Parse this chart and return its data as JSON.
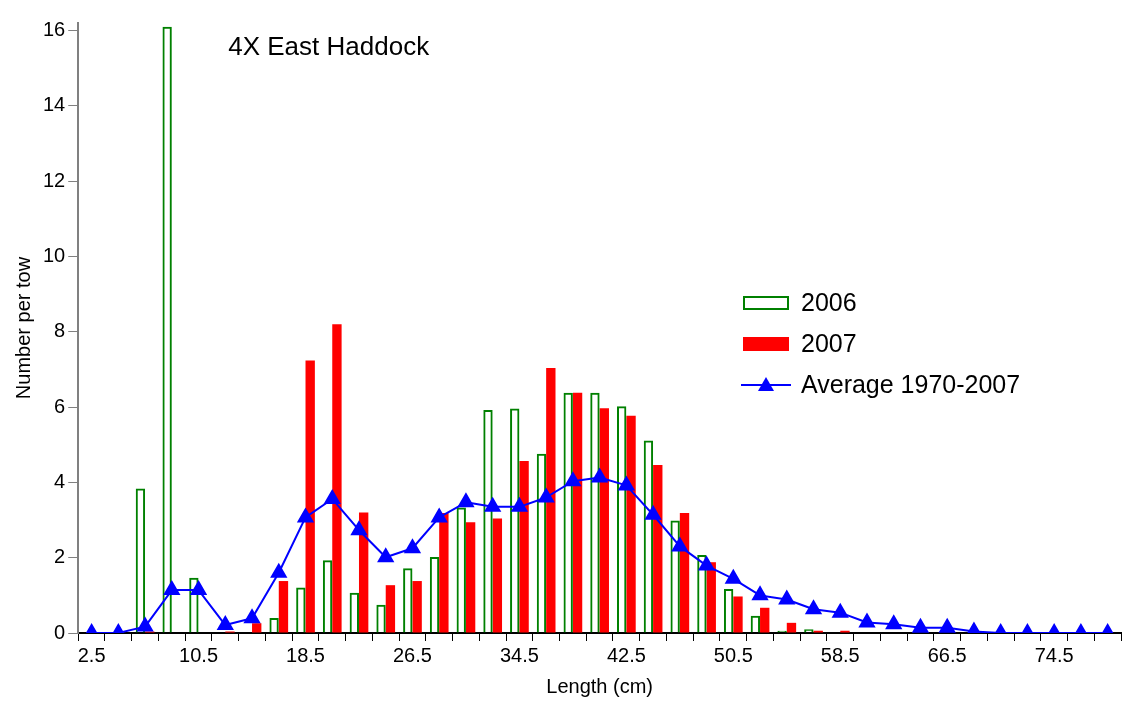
{
  "chart_data": {
    "type": "bar",
    "title": "4X East Haddock",
    "xlabel": "Length (cm)",
    "ylabel": "Number per tow",
    "categories": [
      "2.5",
      null,
      null,
      null,
      "10.5",
      null,
      null,
      null,
      "18.5",
      null,
      null,
      null,
      "26.5",
      null,
      null,
      null,
      "34.5",
      null,
      null,
      null,
      "42.5",
      null,
      null,
      null,
      "50.5",
      null,
      null,
      null,
      "58.5",
      null,
      null,
      null,
      "66.5",
      null,
      null,
      null,
      "74.5",
      null,
      null
    ],
    "series": [
      {
        "name": "2006",
        "color": "#008000",
        "values": [
          0,
          0,
          3.84,
          16.1,
          1.47,
          0,
          0,
          0.4,
          1.21,
          1.93,
          1.07,
          0.75,
          1.72,
          2.02,
          3.33,
          5.92,
          5.96,
          4.76,
          6.38,
          6.38,
          6.02,
          5.11,
          2.99,
          2.07,
          1.17,
          0.46,
          0.06,
          0.1,
          0,
          0,
          0,
          0,
          0,
          0,
          0,
          0,
          0,
          0,
          0
        ]
      },
      {
        "name": "2007",
        "color": "#ff0000",
        "values": [
          0,
          0,
          0.04,
          0,
          0,
          0.04,
          0.26,
          1.38,
          7.24,
          8.2,
          3.2,
          1.27,
          1.38,
          3.19,
          2.94,
          3.04,
          4.57,
          7.04,
          6.38,
          5.97,
          5.77,
          4.46,
          3.19,
          1.88,
          0.97,
          0.67,
          0.27,
          0.06,
          0.06,
          0,
          0,
          0,
          0,
          0,
          0,
          0,
          0,
          0,
          0
        ]
      },
      {
        "name": "Average 1970-2007",
        "type": "line",
        "color": "#0000ff",
        "marker": "triangle",
        "values": [
          0,
          0,
          0.17,
          1.14,
          1.14,
          0.21,
          0.39,
          1.6,
          3.07,
          3.56,
          2.73,
          2.01,
          2.25,
          3.07,
          3.47,
          3.35,
          3.35,
          3.6,
          4.03,
          4.13,
          3.92,
          3.14,
          2.3,
          1.79,
          1.44,
          1.0,
          0.89,
          0.63,
          0.54,
          0.28,
          0.23,
          0.14,
          0.14,
          0.04,
          0,
          0,
          0,
          0,
          0
        ]
      }
    ],
    "ylim": [
      0,
      16.2
    ],
    "yticks": [
      0,
      2,
      4,
      6,
      8,
      10,
      12,
      14,
      16
    ],
    "grid": false,
    "legend": "right"
  }
}
